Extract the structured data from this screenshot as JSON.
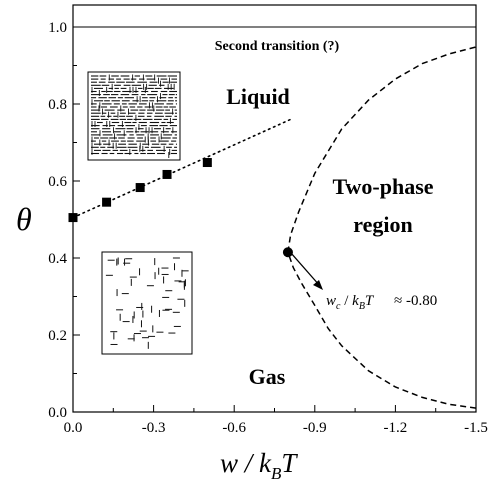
{
  "chart_data": {
    "type": "scatter",
    "xlabel": "w / k_BT",
    "ylabel": "θ",
    "xlim": [
      0.0,
      -1.5
    ],
    "ylim": [
      0.0,
      1.05
    ],
    "x_ticks": [
      "0.0",
      "-0.3",
      "-0.6",
      "-0.9",
      "-1.2",
      "-1.5"
    ],
    "y_ticks": [
      "0.0",
      "0.2",
      "0.4",
      "0.6",
      "0.8",
      "1.0"
    ],
    "grid": false,
    "series": [
      {
        "kind": "markers-square",
        "points": [
          [
            0.0,
            0.505
          ],
          [
            -0.125,
            0.545
          ],
          [
            -0.25,
            0.583
          ],
          [
            -0.35,
            0.617
          ],
          [
            -0.5,
            0.648
          ]
        ]
      },
      {
        "kind": "dotted-line",
        "points": [
          [
            0.0,
            0.505
          ],
          [
            -0.81,
            0.76
          ]
        ]
      },
      {
        "kind": "dashed-curve",
        "wc": -0.8,
        "points": [
          [
            -1.5,
            0.01
          ],
          [
            -1.4,
            0.02
          ],
          [
            -1.3,
            0.038
          ],
          [
            -1.2,
            0.065
          ],
          [
            -1.1,
            0.107
          ],
          [
            -1.0,
            0.172
          ],
          [
            -0.95,
            0.217
          ],
          [
            -0.9,
            0.277
          ],
          [
            -0.85,
            0.335
          ],
          [
            -0.82,
            0.375
          ],
          [
            -0.8,
            0.415
          ],
          [
            -0.81,
            0.46
          ],
          [
            -0.84,
            0.52
          ],
          [
            -0.9,
            0.62
          ],
          [
            -1.0,
            0.735
          ],
          [
            -1.1,
            0.81
          ],
          [
            -1.2,
            0.865
          ],
          [
            -1.3,
            0.905
          ],
          [
            -1.4,
            0.93
          ],
          [
            -1.5,
            0.948
          ]
        ]
      },
      {
        "kind": "solid-line",
        "points": [
          [
            0.0,
            1.0
          ],
          [
            -1.5,
            1.0
          ]
        ]
      }
    ],
    "critical_point": [
      -0.8,
      0.415
    ],
    "annotations": {
      "second_transition": "Second transition (?)",
      "liquid": "Liquid",
      "two_phase_line1": "Two-phase",
      "two_phase_line2": "region",
      "gas": "Gas",
      "critical_value": "≈ -0.80"
    }
  }
}
